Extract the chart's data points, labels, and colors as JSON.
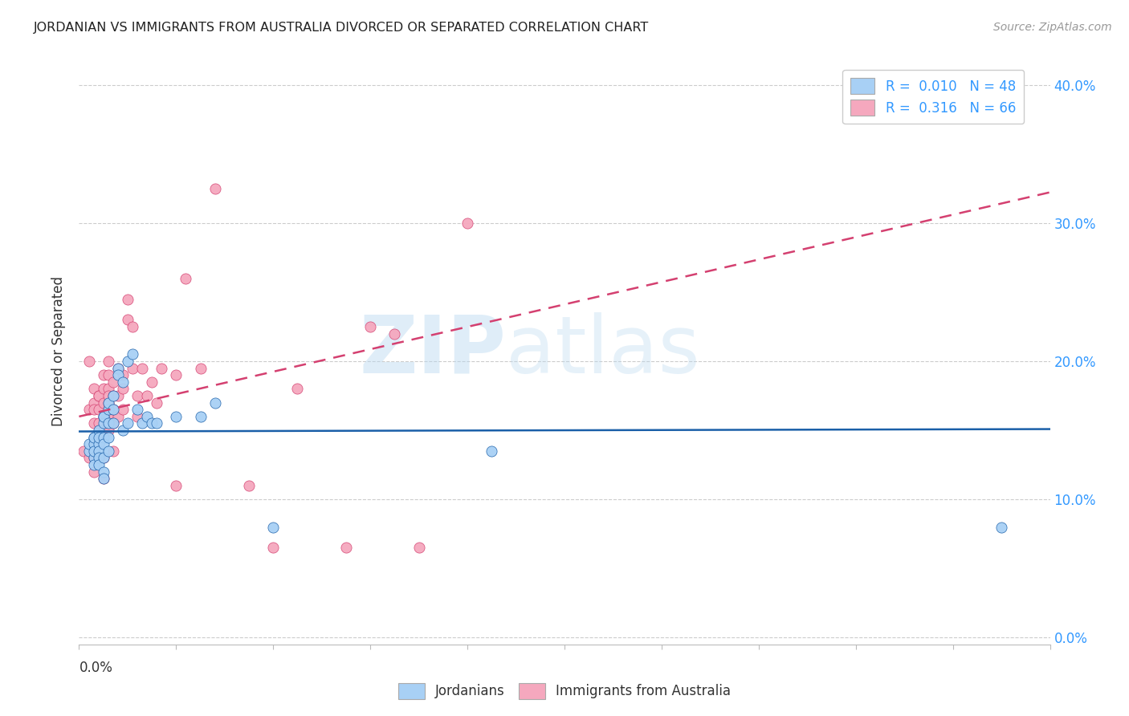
{
  "title": "JORDANIAN VS IMMIGRANTS FROM AUSTRALIA DIVORCED OR SEPARATED CORRELATION CHART",
  "source": "Source: ZipAtlas.com",
  "ylabel": "Divorced or Separated",
  "ytick_vals": [
    0.0,
    0.1,
    0.2,
    0.3,
    0.4
  ],
  "ytick_labels": [
    "0.0%",
    "10.0%",
    "20.0%",
    "30.0%",
    "40.0%"
  ],
  "xlim": [
    0.0,
    0.2
  ],
  "ylim": [
    -0.005,
    0.42
  ],
  "r_blue": 0.01,
  "r_pink": 0.316,
  "n_blue": 48,
  "n_pink": 66,
  "color_blue": "#A8D0F5",
  "color_pink": "#F5A8BE",
  "line_blue": "#1a5fa8",
  "line_pink": "#d44070",
  "watermark_zip": "ZIP",
  "watermark_atlas": "atlas",
  "background_color": "#FFFFFF",
  "grid_color": "#CCCCCC",
  "blue_points_x": [
    0.002,
    0.002,
    0.003,
    0.003,
    0.003,
    0.003,
    0.003,
    0.003,
    0.004,
    0.004,
    0.004,
    0.004,
    0.004,
    0.004,
    0.005,
    0.005,
    0.005,
    0.005,
    0.005,
    0.005,
    0.005,
    0.005,
    0.006,
    0.006,
    0.006,
    0.006,
    0.006,
    0.007,
    0.007,
    0.007,
    0.008,
    0.008,
    0.009,
    0.009,
    0.01,
    0.01,
    0.011,
    0.012,
    0.013,
    0.014,
    0.015,
    0.016,
    0.02,
    0.025,
    0.028,
    0.04,
    0.085,
    0.19
  ],
  "blue_points_y": [
    0.135,
    0.14,
    0.145,
    0.14,
    0.13,
    0.125,
    0.135,
    0.145,
    0.15,
    0.14,
    0.135,
    0.13,
    0.125,
    0.145,
    0.16,
    0.155,
    0.145,
    0.14,
    0.13,
    0.12,
    0.115,
    0.16,
    0.155,
    0.145,
    0.135,
    0.165,
    0.17,
    0.165,
    0.155,
    0.175,
    0.195,
    0.19,
    0.185,
    0.15,
    0.2,
    0.155,
    0.205,
    0.165,
    0.155,
    0.16,
    0.155,
    0.155,
    0.16,
    0.16,
    0.17,
    0.08,
    0.135,
    0.08
  ],
  "pink_points_x": [
    0.001,
    0.002,
    0.002,
    0.002,
    0.003,
    0.003,
    0.003,
    0.003,
    0.003,
    0.003,
    0.003,
    0.004,
    0.004,
    0.004,
    0.004,
    0.004,
    0.004,
    0.005,
    0.005,
    0.005,
    0.005,
    0.005,
    0.005,
    0.005,
    0.006,
    0.006,
    0.006,
    0.006,
    0.006,
    0.006,
    0.006,
    0.007,
    0.007,
    0.007,
    0.007,
    0.007,
    0.008,
    0.008,
    0.008,
    0.009,
    0.009,
    0.009,
    0.01,
    0.01,
    0.011,
    0.011,
    0.012,
    0.012,
    0.013,
    0.014,
    0.015,
    0.016,
    0.017,
    0.02,
    0.02,
    0.022,
    0.025,
    0.028,
    0.035,
    0.04,
    0.045,
    0.055,
    0.06,
    0.065,
    0.07,
    0.08
  ],
  "pink_points_y": [
    0.135,
    0.2,
    0.165,
    0.13,
    0.18,
    0.17,
    0.165,
    0.155,
    0.14,
    0.13,
    0.12,
    0.175,
    0.165,
    0.155,
    0.145,
    0.14,
    0.175,
    0.19,
    0.18,
    0.17,
    0.16,
    0.15,
    0.13,
    0.115,
    0.19,
    0.18,
    0.17,
    0.16,
    0.15,
    0.2,
    0.175,
    0.185,
    0.175,
    0.165,
    0.155,
    0.135,
    0.195,
    0.175,
    0.16,
    0.19,
    0.18,
    0.165,
    0.245,
    0.23,
    0.225,
    0.195,
    0.175,
    0.16,
    0.195,
    0.175,
    0.185,
    0.17,
    0.195,
    0.19,
    0.11,
    0.26,
    0.195,
    0.325,
    0.11,
    0.065,
    0.18,
    0.065,
    0.225,
    0.22,
    0.065,
    0.3
  ]
}
